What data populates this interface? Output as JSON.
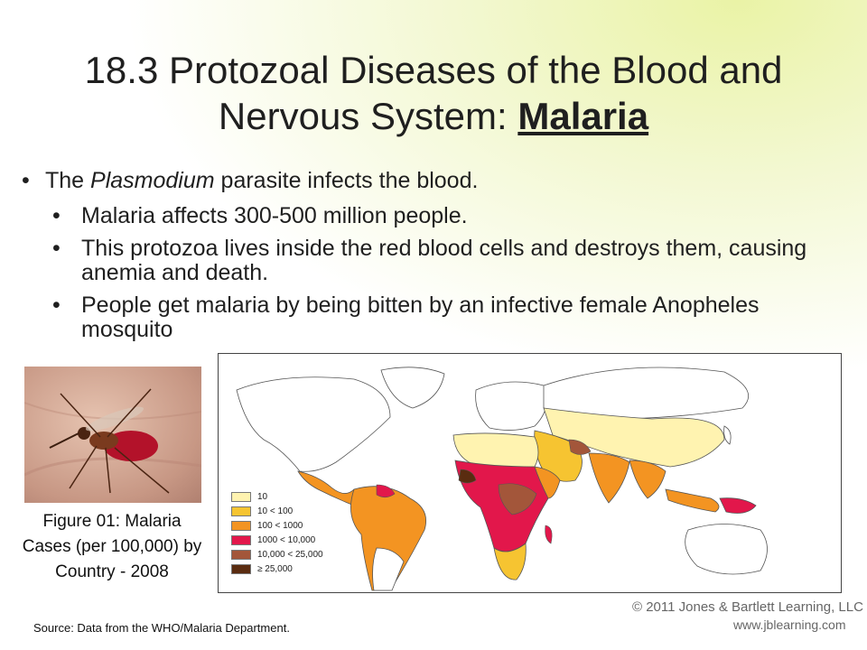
{
  "title": {
    "line1": "18.3 Protozoal Diseases of the Blood and",
    "line2_prefix": "Nervous System: ",
    "highlight": "Malaria"
  },
  "bullets": {
    "main_prefix": "The ",
    "main_italic": "Plasmodium",
    "main_suffix": " parasite infects the blood.",
    "sub": [
      "Malaria affects 300-500 million people.",
      "This protozoa lives inside the red blood cells and destroys them, causing anemia and death.",
      "People get malaria by being bitten by an infective female Anopheles mosquito"
    ]
  },
  "figure": {
    "caption": "Figure 01: Malaria Cases (per 100,000) by Country - 2008",
    "legend": [
      {
        "label": "10",
        "color": "#fff3b0"
      },
      {
        "label": "10 < 100",
        "color": "#f6c431"
      },
      {
        "label": "100 < 1000",
        "color": "#f39422"
      },
      {
        "label": "1000 < 10,000",
        "color": "#e2174b"
      },
      {
        "label": "10,000 < 25,000",
        "color": "#a3563a"
      },
      {
        "label": "≥ 25,000",
        "color": "#5a2c10"
      }
    ]
  },
  "copyright": "© 2011 Jones & Bartlett Learning, LLC",
  "website": "www.jblearning.com",
  "source": "Source: Data from the WHO/Malaria Department."
}
